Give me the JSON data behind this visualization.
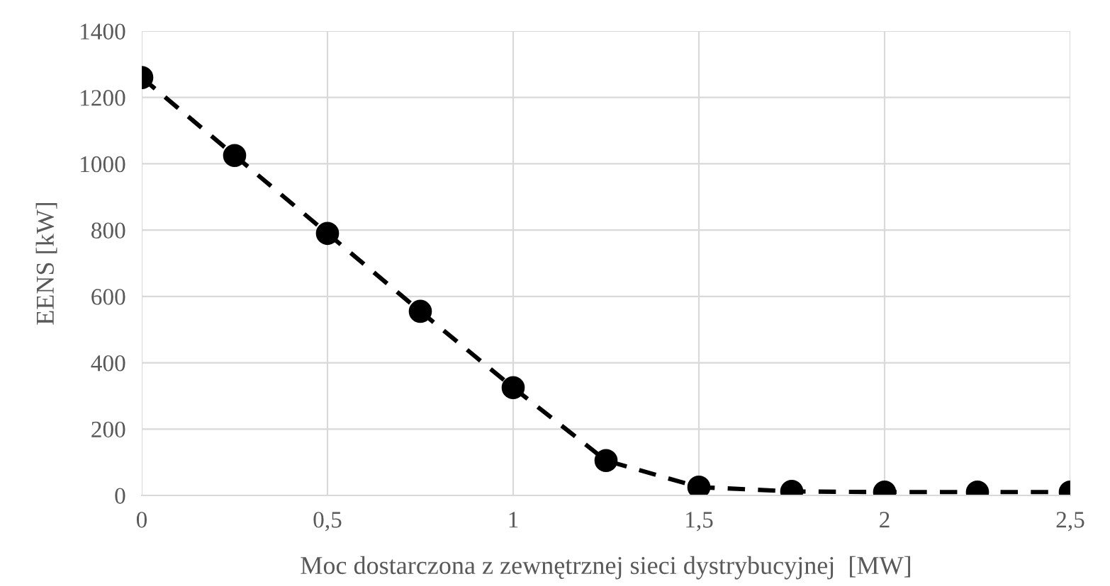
{
  "chart_data": {
    "type": "line",
    "xlabel": "Moc dostarczona z zewnętrznej sieci dystrybucyjnej  [MW]",
    "ylabel": "EENS [kW]",
    "x": [
      0,
      0.25,
      0.5,
      0.75,
      1,
      1.25,
      1.5,
      1.75,
      2,
      2.25,
      2.5
    ],
    "series": [
      {
        "color": "#000000",
        "values": [
          1260,
          1025,
          790,
          555,
          325,
          105,
          25,
          12,
          10,
          10,
          10
        ]
      }
    ],
    "xlim": [
      0,
      2.5
    ],
    "ylim": [
      0,
      1400
    ],
    "xticks": [
      0,
      {
        "value": 0.5,
        "label": "0,5"
      },
      1,
      {
        "value": 1.5,
        "label": "1,5"
      },
      2,
      {
        "value": 2.5,
        "label": "2,5"
      }
    ],
    "yticks": [
      0,
      200,
      400,
      600,
      800,
      1000,
      1200,
      1400
    ],
    "grid": true,
    "marker": "circle",
    "line_style": "dashed"
  }
}
